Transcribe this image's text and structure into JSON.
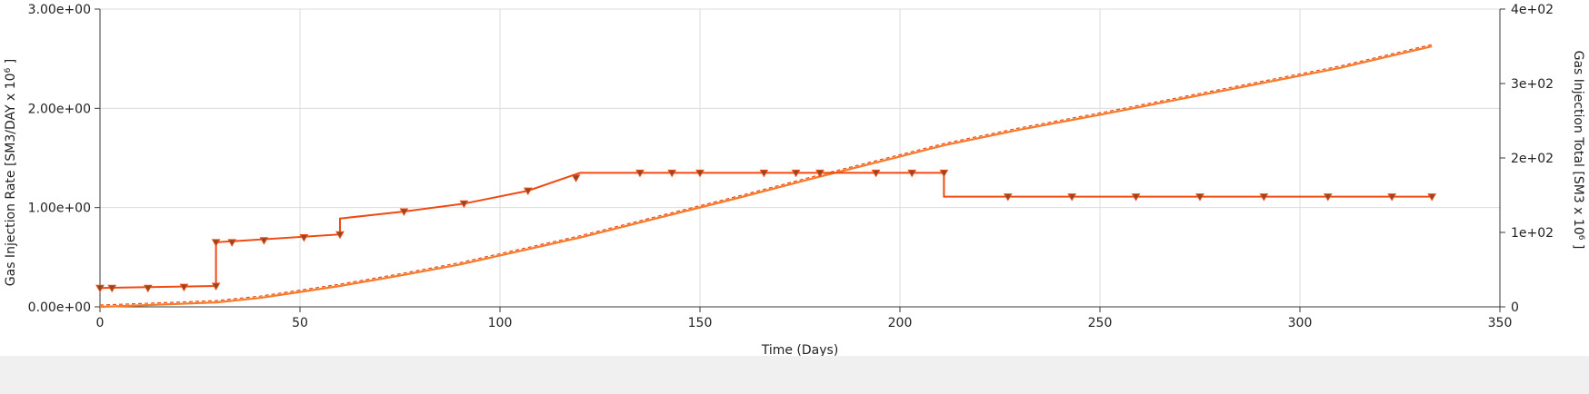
{
  "chart_data": {
    "type": "line",
    "xlabel": "Time (Days)",
    "ylabel_left": "Gas Injection Rate [SM3/DAY x 10",
    "ylabel_left_exp": "6",
    "ylabel_left_end": " ]",
    "ylabel_right": "Gas Injection Total [SM3 x 10",
    "ylabel_right_exp": "6",
    "ylabel_right_end": " ]",
    "xlim": [
      0,
      350
    ],
    "ylim_left": [
      0,
      3
    ],
    "ylim_right": [
      0,
      400
    ],
    "x_ticks": [
      "0",
      "50",
      "100",
      "150",
      "200",
      "250",
      "300",
      "350"
    ],
    "x_tick_values": [
      0,
      50,
      100,
      150,
      200,
      250,
      300,
      350
    ],
    "y_left_ticks": [
      "0.00e+00",
      "1.00e+00",
      "2.00e+00",
      "3.00e+00"
    ],
    "y_left_tick_values": [
      0,
      1,
      2,
      3
    ],
    "y_right_ticks": [
      "0",
      "1e+02",
      "2e+02",
      "3e+02",
      "4e+02"
    ],
    "y_right_tick_values": [
      0,
      100,
      200,
      300,
      400
    ],
    "grid": true,
    "colors": {
      "rate": "#f04a12",
      "total": "#f57a2a",
      "marker_fill": "#8a4a2a",
      "marker_stroke": "#f04a12"
    },
    "series": [
      {
        "axis": "left",
        "style": "step",
        "points": [
          [
            0,
            0.19
          ],
          [
            29,
            0.21
          ],
          [
            29,
            0.65
          ],
          [
            60,
            0.73
          ],
          [
            60,
            0.89
          ],
          [
            76,
            0.96
          ],
          [
            91,
            1.04
          ],
          [
            107,
            1.17
          ],
          [
            120,
            1.35
          ],
          [
            211,
            1.35
          ],
          [
            211,
            1.11
          ],
          [
            333,
            1.11
          ]
        ],
        "markers": [
          [
            0,
            0.19
          ],
          [
            3,
            0.19
          ],
          [
            12,
            0.19
          ],
          [
            21,
            0.2
          ],
          [
            29,
            0.21
          ],
          [
            29,
            0.65
          ],
          [
            33,
            0.65
          ],
          [
            41,
            0.67
          ],
          [
            51,
            0.7
          ],
          [
            60,
            0.73
          ],
          [
            76,
            0.96
          ],
          [
            91,
            1.04
          ],
          [
            107,
            1.17
          ],
          [
            119,
            1.3
          ],
          [
            135,
            1.35
          ],
          [
            143,
            1.35
          ],
          [
            150,
            1.35
          ],
          [
            166,
            1.35
          ],
          [
            174,
            1.35
          ],
          [
            180,
            1.35
          ],
          [
            194,
            1.35
          ],
          [
            203,
            1.35
          ],
          [
            211,
            1.35
          ],
          [
            227,
            1.11
          ],
          [
            243,
            1.11
          ],
          [
            259,
            1.11
          ],
          [
            275,
            1.11
          ],
          [
            291,
            1.11
          ],
          [
            307,
            1.11
          ],
          [
            323,
            1.11
          ],
          [
            333,
            1.11
          ]
        ]
      },
      {
        "axis": "right",
        "style": "line",
        "points": [
          [
            0,
            0
          ],
          [
            10,
            2
          ],
          [
            20,
            4
          ],
          [
            29,
            6
          ],
          [
            40,
            12
          ],
          [
            50,
            20
          ],
          [
            60,
            28
          ],
          [
            75,
            42
          ],
          [
            90,
            57
          ],
          [
            100,
            69
          ],
          [
            110,
            81
          ],
          [
            120,
            93
          ],
          [
            140,
            120
          ],
          [
            160,
            147
          ],
          [
            180,
            175
          ],
          [
            200,
            202
          ],
          [
            211,
            217
          ],
          [
            230,
            238
          ],
          [
            250,
            258
          ],
          [
            270,
            279
          ],
          [
            290,
            300
          ],
          [
            310,
            321
          ],
          [
            333,
            350
          ]
        ]
      }
    ]
  }
}
